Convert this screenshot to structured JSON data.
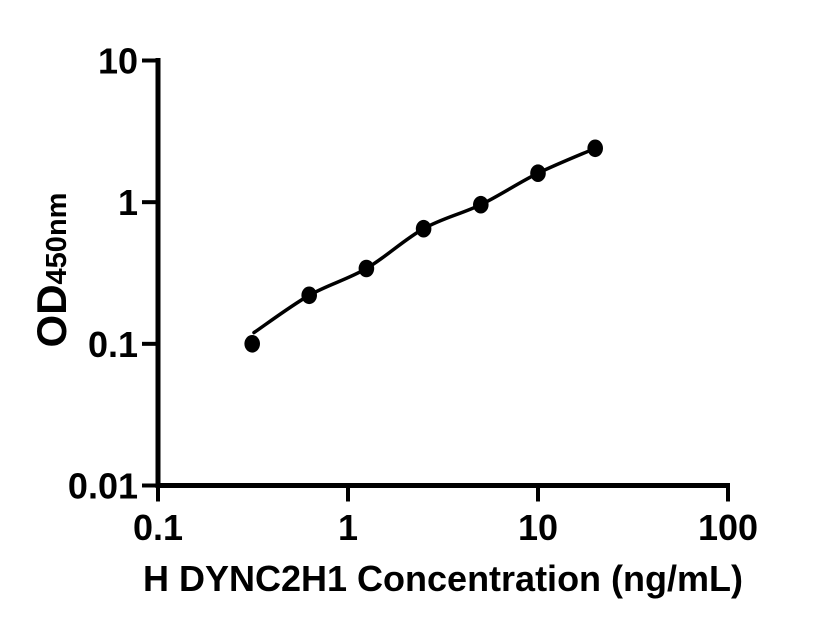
{
  "figure": {
    "background": "#ffffff",
    "ink_color": "#000000"
  },
  "chart_data": {
    "type": "scatter",
    "title": "",
    "xlabel": "H DYNC2H1 Concentration (ng/mL)",
    "ylabel_main": "OD",
    "ylabel_sub": "450nm",
    "x_scale": "log",
    "y_scale": "log",
    "xlim": [
      0.1,
      100
    ],
    "ylim": [
      0.01,
      10
    ],
    "x_ticks": [
      {
        "value": 0.1,
        "label": "0.1"
      },
      {
        "value": 1,
        "label": "1"
      },
      {
        "value": 10,
        "label": "10"
      },
      {
        "value": 100,
        "label": "100"
      }
    ],
    "y_ticks": [
      {
        "value": 0.01,
        "label": "0.01"
      },
      {
        "value": 0.1,
        "label": "0.1"
      },
      {
        "value": 1,
        "label": "1"
      },
      {
        "value": 10,
        "label": "10"
      }
    ],
    "series": [
      {
        "name": "standard-curve",
        "marker": "filled-circle",
        "color": "#000000",
        "points": [
          {
            "conc": 0.313,
            "od": 0.1
          },
          {
            "conc": 0.625,
            "od": 0.22
          },
          {
            "conc": 1.25,
            "od": 0.34
          },
          {
            "conc": 2.5,
            "od": 0.65
          },
          {
            "conc": 5,
            "od": 0.96
          },
          {
            "conc": 10,
            "od": 1.6
          },
          {
            "conc": 20,
            "od": 2.4
          }
        ]
      }
    ],
    "fit_line": {
      "description": "fitted standard curve",
      "color": "#000000",
      "points": [
        {
          "conc": 0.32,
          "od": 0.12
        },
        {
          "conc": 0.625,
          "od": 0.22
        },
        {
          "conc": 1.25,
          "od": 0.34
        },
        {
          "conc": 2.5,
          "od": 0.65
        },
        {
          "conc": 5,
          "od": 0.96
        },
        {
          "conc": 10,
          "od": 1.6
        },
        {
          "conc": 20,
          "od": 2.4
        }
      ]
    },
    "grid": false,
    "legend": false
  }
}
